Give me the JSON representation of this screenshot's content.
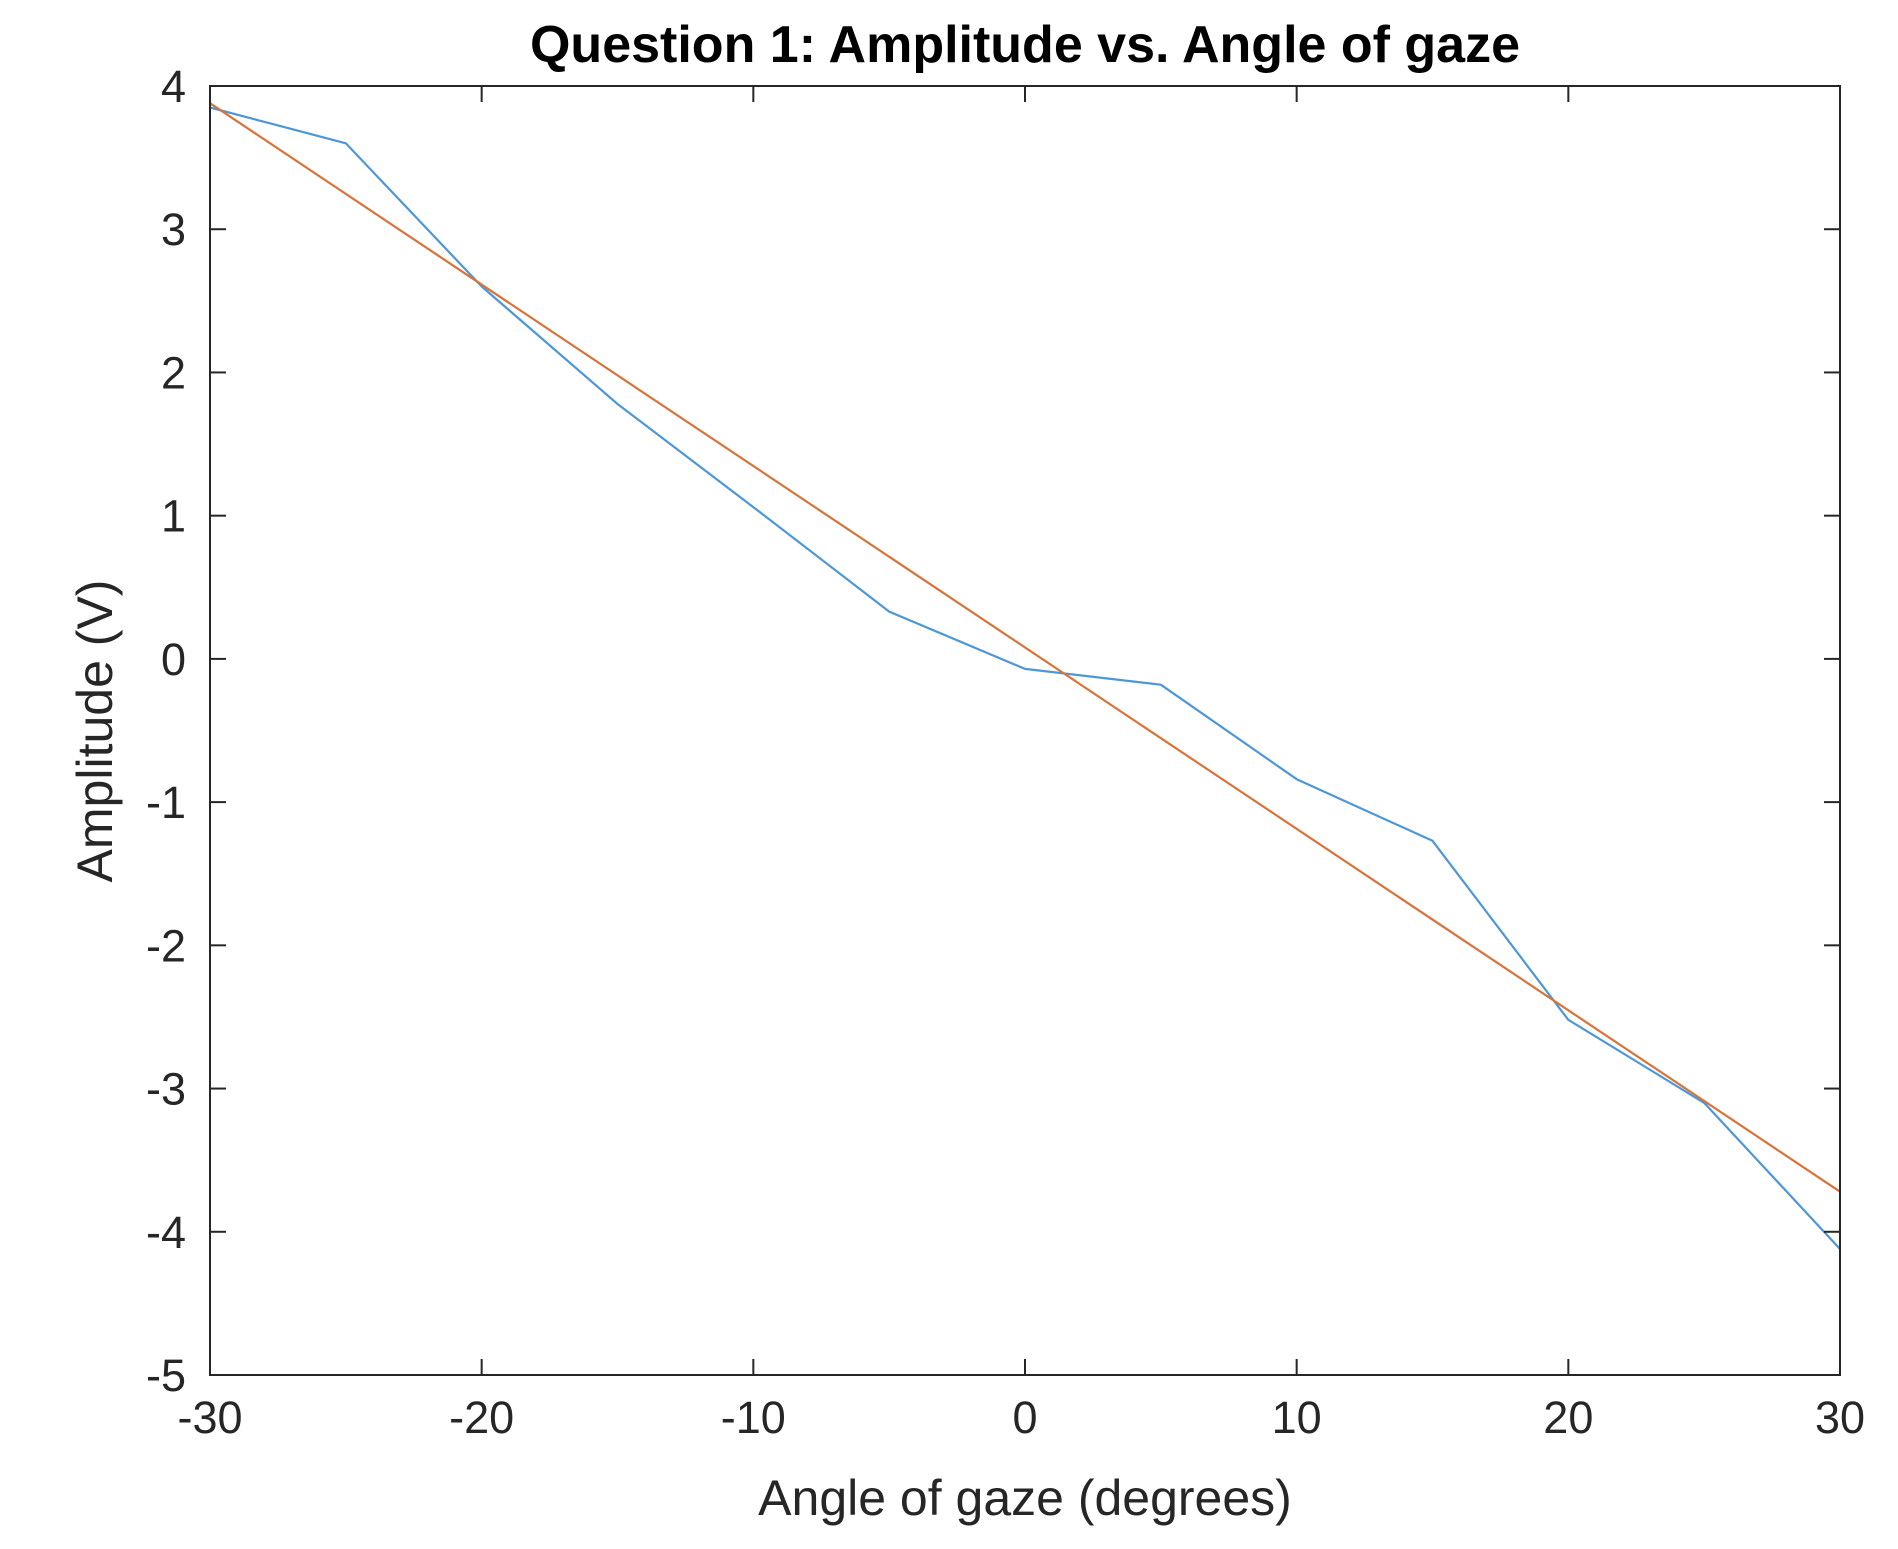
{
  "chart_data": {
    "type": "line",
    "title": "Question 1: Amplitude vs. Angle of gaze",
    "xlabel": "Angle of gaze (degrees)",
    "ylabel": "Amplitude (V)",
    "xlim": [
      -30,
      30
    ],
    "ylim": [
      -5,
      4
    ],
    "xticks": [
      -30,
      -20,
      -10,
      0,
      10,
      20,
      30
    ],
    "xtick_labels": [
      "-30",
      "-20",
      "-10",
      "0",
      "10",
      "20",
      "30"
    ],
    "yticks": [
      -5,
      -4,
      -3,
      -2,
      -1,
      0,
      1,
      2,
      3,
      4
    ],
    "ytick_labels": [
      "-5",
      "-4",
      "-3",
      "-2",
      "-1",
      "0",
      "1",
      "2",
      "3",
      "4"
    ],
    "grid": false,
    "box": true,
    "series": [
      {
        "color": "#4d97d6",
        "x": [
          -30,
          -25,
          -20,
          -15,
          -10,
          -5,
          0,
          5,
          10,
          15,
          20,
          25,
          30
        ],
        "y": [
          3.85,
          3.6,
          2.6,
          1.78,
          1.06,
          0.33,
          -0.07,
          -0.18,
          -0.84,
          -1.27,
          -2.52,
          -3.1,
          -4.12
        ]
      },
      {
        "color": "#d8733a",
        "x": [
          -30,
          30
        ],
        "y": [
          3.88,
          -3.72
        ]
      }
    ]
  }
}
